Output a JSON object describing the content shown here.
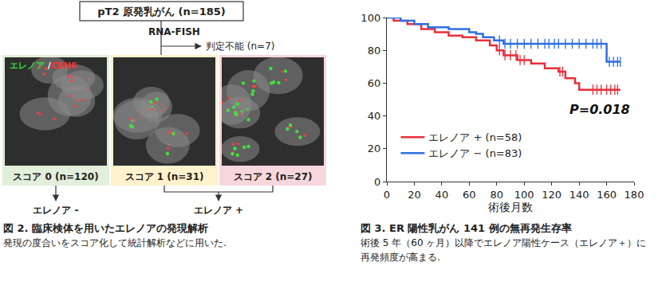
{
  "diagram": {
    "top_box": "pT2 原発乳がん (n=185)",
    "method": "RNA-FISH",
    "excluded": "判定不能 (n=7)",
    "probe_labels": [
      {
        "text": "エレノア",
        "color": "#33dd33"
      },
      {
        "text": " /",
        "color": "#ffffff"
      },
      {
        "text": "CEN6",
        "color": "#ff3333"
      }
    ],
    "panels": [
      {
        "label": "スコア 0 (n=120)",
        "color": "#e2efda"
      },
      {
        "label": "スコア 1 (n=31)",
        "color": "#fff2cc"
      },
      {
        "label": "スコア 2 (n=27)",
        "color": "#f8d7dc"
      }
    ],
    "groups": [
      "エレノア -",
      "エレノア +"
    ],
    "caption_title": "図 2. 臨床検体を用いたエレノアの発現解析",
    "caption_text": "発現の度合いをスコア化して統計解析などに用いた."
  },
  "chart_data": {
    "type": "line",
    "title": "図 3. ER 陽性乳がん 141 例の無再発生存率",
    "subtitle": "術後 5 年（60 ヶ月）以降でエレノア陽性ケース（エレノア＋）に再発頻度が高まる.",
    "x_label": "術後月数",
    "xlim": [
      0,
      180
    ],
    "xticks": [
      0,
      20,
      40,
      60,
      80,
      100,
      120,
      140,
      160,
      180
    ],
    "ylim": [
      0,
      100
    ],
    "yticks": [
      0,
      20,
      40,
      60,
      80,
      100
    ],
    "grid": false,
    "legend": "lower left",
    "line_style": "step",
    "annotations": [
      "P=0.018"
    ],
    "series": [
      {
        "name": "エレノア + (n=58)",
        "color": "#e8303a",
        "x": [
          0,
          5,
          15,
          25,
          35,
          45,
          55,
          65,
          75,
          80,
          85,
          95,
          105,
          115,
          125,
          130,
          137,
          140,
          170
        ],
        "values": [
          100,
          98,
          96,
          93,
          91,
          89,
          88,
          86,
          83,
          80,
          77,
          74,
          72,
          69,
          67,
          63,
          60,
          56,
          56
        ],
        "censored": [
          82,
          86,
          90,
          94,
          97,
          100,
          126,
          128,
          150,
          153,
          156,
          160,
          163,
          166,
          168
        ]
      },
      {
        "name": "エレノア − (n=83)",
        "color": "#2f6fe0",
        "x": [
          0,
          10,
          20,
          30,
          45,
          60,
          65,
          70,
          78,
          85,
          158,
          160,
          170
        ],
        "values": [
          100,
          98,
          96,
          94,
          93,
          91,
          90,
          88,
          86,
          84,
          84,
          73,
          73
        ],
        "censored": [
          82,
          86,
          90,
          95,
          100,
          105,
          110,
          115,
          118,
          122,
          125,
          130,
          135,
          140,
          145,
          150,
          153,
          156,
          162,
          165,
          168,
          170
        ]
      }
    ]
  }
}
